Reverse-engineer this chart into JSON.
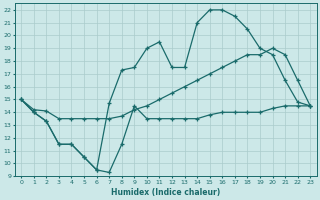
{
  "xlabel": "Humidex (Indice chaleur)",
  "bg_color": "#cce8e8",
  "grid_color": "#aacccc",
  "line_color": "#1a6b6b",
  "xlim": [
    -0.5,
    23.5
  ],
  "ylim": [
    9,
    22.5
  ],
  "xticks": [
    0,
    1,
    2,
    3,
    4,
    5,
    6,
    7,
    8,
    9,
    10,
    11,
    12,
    13,
    14,
    15,
    16,
    17,
    18,
    19,
    20,
    21,
    22,
    23
  ],
  "yticks": [
    9,
    10,
    11,
    12,
    13,
    14,
    15,
    16,
    17,
    18,
    19,
    20,
    21,
    22
  ],
  "line1_x": [
    0,
    1,
    2,
    3,
    4,
    5,
    6,
    7,
    8,
    9,
    10,
    11,
    12,
    13,
    14,
    15,
    16,
    17,
    18,
    19,
    20,
    21,
    22,
    23
  ],
  "line1_y": [
    15,
    14,
    13.3,
    11.5,
    11.5,
    10.5,
    9.5,
    9.3,
    11.5,
    14.5,
    13.5,
    13.5,
    13.5,
    13.5,
    13.5,
    13.8,
    14,
    14,
    14,
    14,
    14.3,
    14.5,
    14.5,
    14.5
  ],
  "line2_x": [
    0,
    1,
    2,
    3,
    4,
    5,
    6,
    7,
    8,
    9,
    10,
    11,
    12,
    13,
    14,
    15,
    16,
    17,
    18,
    19,
    20,
    21,
    22,
    23
  ],
  "line2_y": [
    15,
    14,
    13.3,
    11.5,
    11.5,
    10.5,
    9.5,
    14.7,
    17.3,
    17.5,
    19,
    19.5,
    17.5,
    17.5,
    21,
    22,
    22,
    21.5,
    20.5,
    19,
    18.5,
    16.5,
    14.8,
    14.5
  ],
  "line3_x": [
    0,
    1,
    2,
    3,
    4,
    5,
    6,
    7,
    8,
    9,
    10,
    11,
    12,
    13,
    14,
    15,
    16,
    17,
    18,
    19,
    20,
    21,
    22,
    23
  ],
  "line3_y": [
    15,
    14.2,
    14.1,
    13.5,
    13.5,
    13.5,
    13.5,
    13.5,
    13.7,
    14.2,
    14.5,
    15,
    15.5,
    16,
    16.5,
    17,
    17.5,
    18,
    18.5,
    18.5,
    19,
    18.5,
    16.5,
    14.5
  ]
}
